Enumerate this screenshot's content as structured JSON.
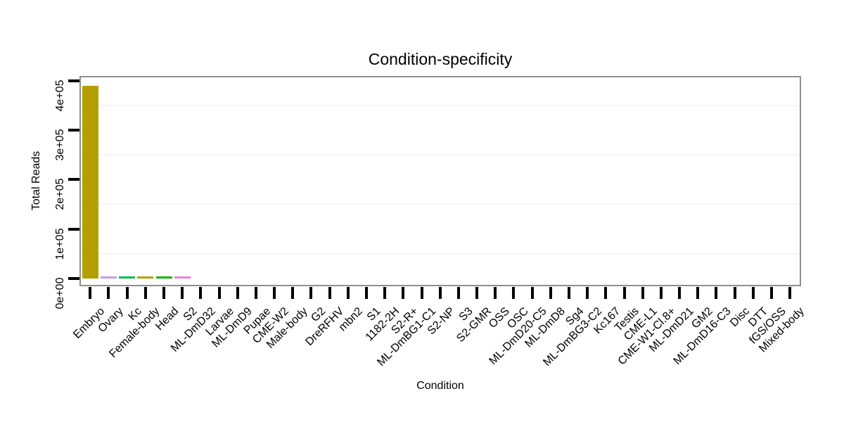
{
  "chart": {
    "title": "Condition-specificity",
    "xlabel": "Condition",
    "ylabel": "Total Reads"
  },
  "chart_data": {
    "type": "bar",
    "title": "Condition-specificity",
    "xlabel": "Condition",
    "ylabel": "Total Reads",
    "ylim": [
      0,
      410000
    ],
    "grid": "minor-horizontal-only",
    "legend": "none",
    "y_tick_labels": [
      "0e+00",
      "1e+05",
      "2e+05",
      "3e+05",
      "4e+05"
    ],
    "y_tick_values": [
      0,
      100000,
      200000,
      300000,
      400000
    ],
    "categories": [
      "Embryo",
      "Ovary",
      "Kc",
      "Female-body",
      "Head",
      "S2",
      "ML-DmD32",
      "Larvae",
      "ML-DmD9",
      "Pupae",
      "CME-W2",
      "Male-body",
      "G2",
      "DreRFHV",
      "mbn2",
      "S1",
      "1182-2H",
      "S2-R+",
      "ML-DmBG1-C1",
      "S2-NP",
      "S3",
      "S2-GMR",
      "OSS",
      "OSC",
      "ML-DmD20-C5",
      "ML-DmD8",
      "Sg4",
      "ML-DmBG3-C2",
      "Kc167",
      "Testis",
      "CME-L1",
      "CME-W1-Cl.8+",
      "ML-DmD21",
      "GM2",
      "ML-DmD16-C3",
      "Disc",
      "DTT",
      "fGS/OSS",
      "Mixed-body"
    ],
    "values": [
      390000,
      4000,
      4000,
      4000,
      4000,
      4000,
      0,
      0,
      0,
      0,
      0,
      0,
      0,
      0,
      0,
      0,
      0,
      0,
      0,
      0,
      0,
      0,
      0,
      0,
      0,
      0,
      0,
      0,
      0,
      0,
      0,
      0,
      0,
      0,
      0,
      0,
      0,
      0,
      0
    ],
    "bar_colors": [
      "#b3a000",
      "#c89af5",
      "#00bb4e",
      "#b3a000",
      "#15b900",
      "#f07ce4",
      null,
      null,
      null,
      null,
      null,
      null,
      null,
      null,
      null,
      null,
      null,
      null,
      null,
      null,
      null,
      null,
      null,
      null,
      null,
      null,
      null,
      null,
      null,
      null,
      null,
      null,
      null,
      null,
      null,
      null,
      null,
      null,
      null
    ],
    "colors": {
      "panel_border": "#8e8e8e",
      "tick": "#000000",
      "minor_grid": "#f5f5f5",
      "background": "#ffffff",
      "text": "#000000"
    }
  }
}
